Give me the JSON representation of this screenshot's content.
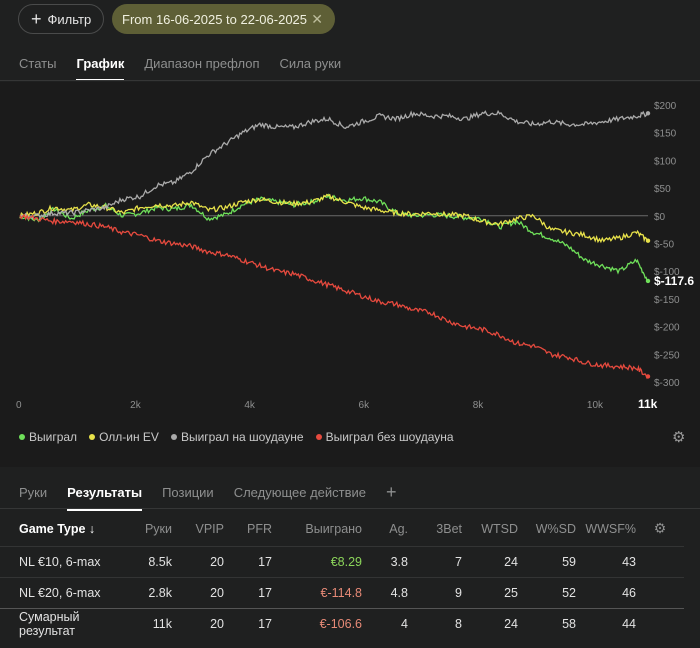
{
  "filter": {
    "label": "Фильтр",
    "date_range": "From 16-06-2025 to 22-06-2025",
    "clear_icon": "close-icon"
  },
  "top_tabs": [
    "Статы",
    "График",
    "Диапазон префлоп",
    "Сила руки"
  ],
  "top_tab_active": "График",
  "chart_data": {
    "type": "line",
    "title": "",
    "x_unit": "hands",
    "xlim": [
      0,
      11000
    ],
    "ylim": [
      -300,
      200
    ],
    "x_ticks": [
      "0",
      "2k",
      "4k",
      "6k",
      "8k",
      "10k",
      "11k"
    ],
    "y_ticks": [
      "$200",
      "$150",
      "$100",
      "$50",
      "$0",
      "$-50",
      "$-100",
      "$-150",
      "$-200",
      "$-250",
      "$-300"
    ],
    "end_label": "$-117.6",
    "series": [
      {
        "name": "Выиграл",
        "color": "#6fe05a",
        "x": [
          0,
          300,
          600,
          900,
          1200,
          1500,
          1800,
          2100,
          2400,
          2700,
          3000,
          3300,
          3600,
          3900,
          4200,
          4500,
          4800,
          5100,
          5400,
          5700,
          6000,
          6300,
          6600,
          6900,
          7200,
          7500,
          7800,
          8100,
          8400,
          8700,
          9000,
          9300,
          9600,
          9900,
          10200,
          10500,
          10800,
          11000
        ],
        "y": [
          0,
          -8,
          12,
          -5,
          10,
          18,
          0,
          5,
          15,
          12,
          20,
          -5,
          2,
          20,
          30,
          25,
          20,
          25,
          35,
          28,
          32,
          25,
          5,
          0,
          2,
          0,
          -3,
          -5,
          -20,
          -10,
          -30,
          -40,
          -55,
          -80,
          -90,
          -100,
          -80,
          -117.6
        ]
      },
      {
        "name": "Олл-ин EV",
        "color": "#e8e24a",
        "x": [
          0,
          300,
          600,
          900,
          1200,
          1500,
          1800,
          2100,
          2400,
          2700,
          3000,
          3300,
          3600,
          3900,
          4200,
          4500,
          4800,
          5100,
          5400,
          5700,
          6000,
          6300,
          6600,
          6900,
          7200,
          7500,
          7800,
          8100,
          8400,
          8700,
          9000,
          9300,
          9600,
          9900,
          10200,
          10500,
          10800,
          11000
        ],
        "y": [
          0,
          5,
          15,
          10,
          20,
          15,
          5,
          15,
          20,
          18,
          25,
          10,
          15,
          25,
          30,
          25,
          22,
          25,
          35,
          25,
          15,
          10,
          5,
          3,
          5,
          2,
          0,
          -10,
          -15,
          -5,
          0,
          -25,
          -30,
          -35,
          -45,
          -40,
          -30,
          -45
        ]
      },
      {
        "name": "Выиграл на шоудауне",
        "color": "#aaaaaa",
        "x": [
          0,
          300,
          600,
          900,
          1200,
          1500,
          1800,
          2100,
          2400,
          2700,
          3000,
          3300,
          3600,
          3900,
          4200,
          4500,
          4800,
          5100,
          5400,
          5700,
          6000,
          6300,
          6600,
          6900,
          7200,
          7500,
          7800,
          8100,
          8400,
          8700,
          9000,
          9300,
          9600,
          9900,
          10200,
          10500,
          10800,
          11000
        ],
        "y": [
          0,
          0,
          5,
          5,
          10,
          15,
          30,
          35,
          55,
          60,
          80,
          110,
          130,
          150,
          165,
          160,
          160,
          170,
          175,
          160,
          170,
          180,
          175,
          185,
          180,
          180,
          175,
          185,
          185,
          170,
          165,
          170,
          165,
          165,
          170,
          175,
          180,
          185
        ]
      },
      {
        "name": "Выиграл без шоудауна",
        "color": "#e64a3e",
        "x": [
          0,
          300,
          600,
          900,
          1200,
          1500,
          1800,
          2100,
          2400,
          2700,
          3000,
          3300,
          3600,
          3900,
          4200,
          4500,
          4800,
          5100,
          5400,
          5700,
          6000,
          6300,
          6600,
          6900,
          7200,
          7500,
          7800,
          8100,
          8400,
          8700,
          9000,
          9300,
          9600,
          9900,
          10200,
          10500,
          10800,
          11000
        ],
        "y": [
          0,
          -5,
          -10,
          -10,
          -15,
          -20,
          -30,
          -35,
          -45,
          -50,
          -55,
          -65,
          -70,
          -80,
          -90,
          -100,
          -105,
          -115,
          -125,
          -135,
          -145,
          -155,
          -160,
          -170,
          -175,
          -190,
          -200,
          -205,
          -215,
          -230,
          -235,
          -250,
          -255,
          -265,
          -270,
          -272,
          -275,
          -290
        ]
      }
    ],
    "legend": [
      "Выиграл",
      "Олл-ин EV",
      "Выиграл на шоудауне",
      "Выиграл без шоудауна"
    ]
  },
  "bottom_tabs": [
    "Руки",
    "Результаты",
    "Позиции",
    "Следующее действие"
  ],
  "bottom_tab_active": "Результаты",
  "table": {
    "headers": [
      "Game Type ↓",
      "Руки",
      "VPIP",
      "PFR",
      "Выиграно",
      "Ag.",
      "3Bet",
      "WTSD",
      "W%SD",
      "WWSF%"
    ],
    "rows": [
      [
        "NL €10, 6-max",
        "8.5k",
        "20",
        "17",
        "€8.29",
        "3.8",
        "7",
        "24",
        "59",
        "43"
      ],
      [
        "NL €20, 6-max",
        "2.8k",
        "20",
        "17",
        "€-114.8",
        "4.8",
        "9",
        "25",
        "52",
        "46"
      ]
    ],
    "total": [
      "Сумарный результат",
      "11k",
      "20",
      "17",
      "€-106.6",
      "4",
      "8",
      "24",
      "58",
      "44"
    ]
  }
}
